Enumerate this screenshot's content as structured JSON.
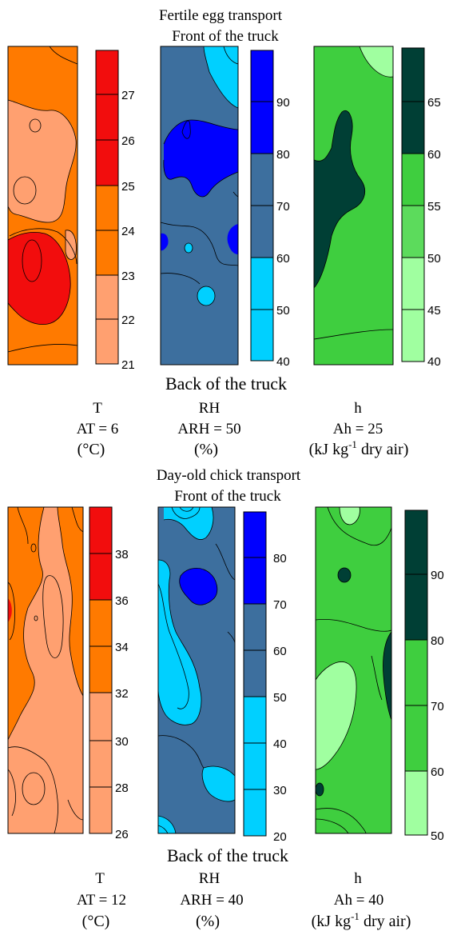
{
  "top_section": {
    "title_line1": "Fertile egg transport",
    "title_line2": "Front of the truck",
    "bottom_label": "Back of the truck",
    "panels": [
      {
        "variable": "T",
        "average": "AT = 6",
        "unit": "(°C)",
        "colorbar": {
          "ticks": [
            "27",
            "26",
            "25",
            "24",
            "23",
            "22",
            "21"
          ]
        }
      },
      {
        "variable": "RH",
        "average": "ARH = 50",
        "unit": "(%)",
        "colorbar": {
          "ticks": [
            "90",
            "80",
            "70",
            "60",
            "50",
            "40"
          ]
        }
      },
      {
        "variable": "h",
        "average": "Ah = 25",
        "unit_base": "(kJ kg",
        "unit_exp": "-1",
        "unit_tail": " dry air)",
        "colorbar": {
          "ticks": [
            "65",
            "60",
            "55",
            "50",
            "45",
            "40"
          ]
        }
      }
    ]
  },
  "bottom_section": {
    "title_line1": "Day-old chick transport",
    "title_line2": "Front of the truck",
    "bottom_label": "Back of the truck",
    "panels": [
      {
        "variable": "T",
        "average": "AT = 12",
        "unit": "(°C)",
        "colorbar": {
          "ticks": [
            "38",
            "36",
            "34",
            "32",
            "30",
            "28",
            "26"
          ]
        }
      },
      {
        "variable": "RH",
        "average": "ARH = 40",
        "unit": "(%)",
        "colorbar": {
          "ticks": [
            "80",
            "70",
            "60",
            "50",
            "40",
            "30",
            "20"
          ]
        }
      },
      {
        "variable": "h",
        "average": "Ah = 40",
        "unit_base": "(kJ kg",
        "unit_exp": "-1",
        "unit_tail": " dry air)",
        "colorbar": {
          "ticks": [
            "90",
            "80",
            "70",
            "60",
            "50"
          ]
        }
      }
    ]
  },
  "colors": {
    "t_red": "#f20d0d",
    "t_orange": "#ff7a00",
    "t_salmon": "#ffa070",
    "rh_blue": "#0000ff",
    "rh_steel": "#3d6f9e",
    "rh_cyan": "#00d0ff",
    "h_dark": "#003f35",
    "h_mid": "#3fce3f",
    "h_light2": "#5cdb5c",
    "h_pale": "#a0ffa0"
  }
}
